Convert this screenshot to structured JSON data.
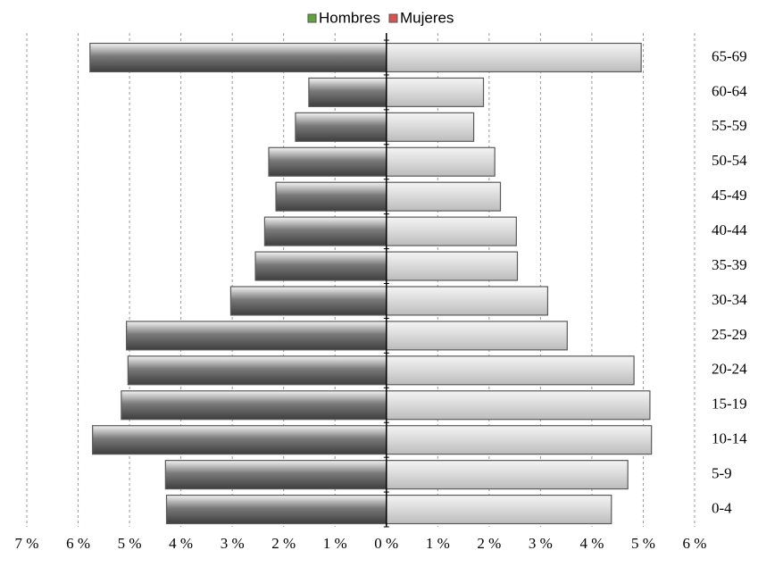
{
  "chart_data": {
    "type": "pyramid",
    "categories": [
      "0-4",
      "5-9",
      "10-14",
      "15-19",
      "20-24",
      "25-29",
      "30-34",
      "35-39",
      "40-44",
      "45-49",
      "50-54",
      "55-59",
      "60-64",
      "65-69"
    ],
    "series": [
      {
        "name": "Hombres",
        "color": "#7a7a7a",
        "legend_color": "#5fa33a",
        "values": [
          -4.28,
          -4.3,
          -5.72,
          -5.16,
          -5.03,
          -5.06,
          -3.03,
          -2.55,
          -2.37,
          -2.15,
          -2.29,
          -1.77,
          -1.51,
          -5.77
        ]
      },
      {
        "name": "Mujeres",
        "color": "#dcdcdc",
        "legend_color": "#d9534f",
        "values": [
          4.38,
          4.7,
          5.16,
          5.13,
          4.82,
          3.52,
          3.14,
          2.55,
          2.53,
          2.22,
          2.11,
          1.7,
          1.89,
          4.96
        ]
      }
    ],
    "xlim": [
      -7,
      6
    ],
    "xticks": [
      {
        "value": -7,
        "label": "7 %"
      },
      {
        "value": -6,
        "label": "6 %"
      },
      {
        "value": -5,
        "label": "5 %"
      },
      {
        "value": -4,
        "label": "4 %"
      },
      {
        "value": -3,
        "label": "3 %"
      },
      {
        "value": -2,
        "label": "2 %"
      },
      {
        "value": -1,
        "label": "1 %"
      },
      {
        "value": 0,
        "label": "0 %"
      },
      {
        "value": 1,
        "label": "1 %"
      },
      {
        "value": 2,
        "label": "2 %"
      },
      {
        "value": 3,
        "label": "3 %"
      },
      {
        "value": 4,
        "label": "4 %"
      },
      {
        "value": 5,
        "label": "5 %"
      },
      {
        "value": 6,
        "label": "6 %"
      }
    ],
    "grid": true,
    "legend": "top"
  }
}
